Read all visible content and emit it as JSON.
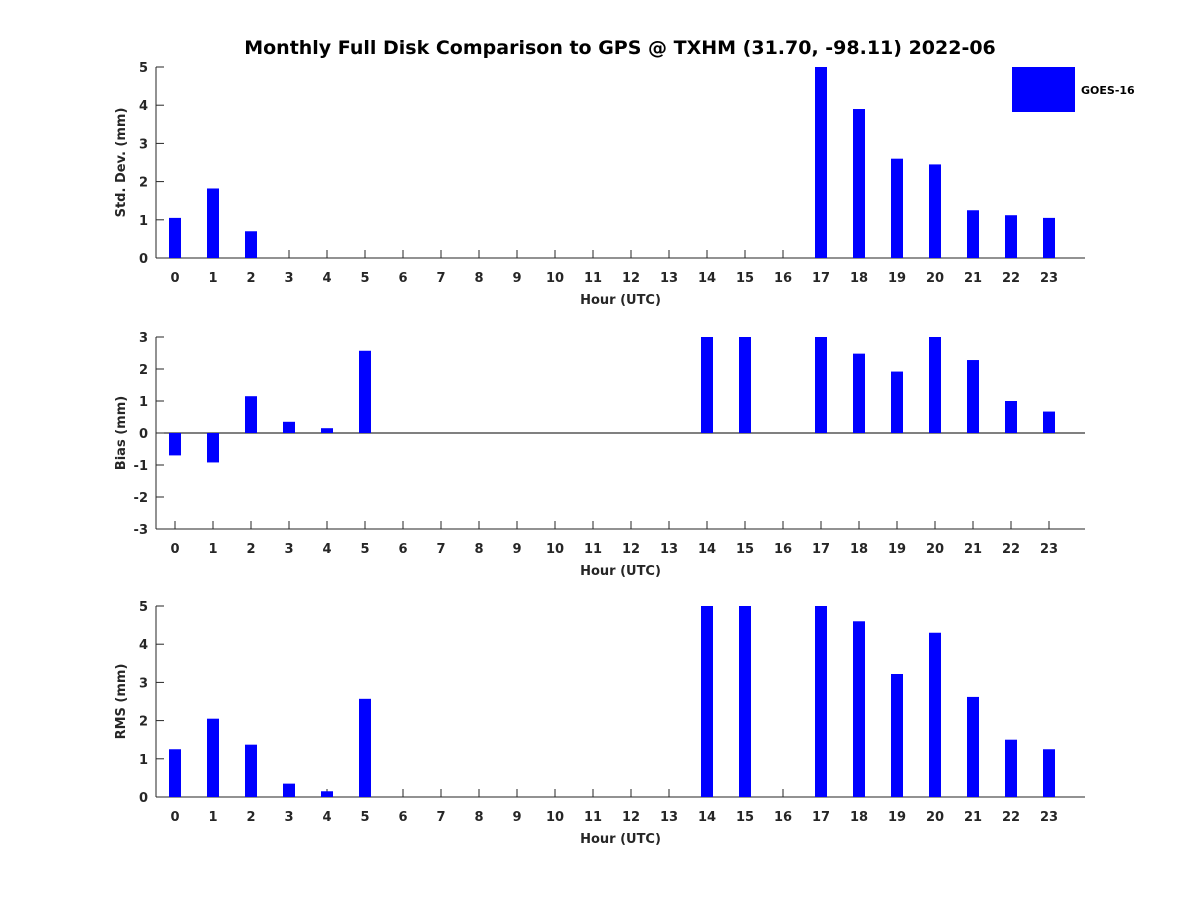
{
  "chart_data": {
    "type": "bar",
    "title": "Monthly Full Disk Comparison to GPS @ TXHM (31.70, -98.11) 2022-06",
    "legend": {
      "label": "GOES-16",
      "color": "#0000ff",
      "placement": "top-right"
    },
    "categories": [
      "0",
      "1",
      "2",
      "3",
      "4",
      "5",
      "6",
      "7",
      "8",
      "9",
      "10",
      "11",
      "12",
      "13",
      "14",
      "15",
      "16",
      "17",
      "18",
      "19",
      "20",
      "21",
      "22",
      "23"
    ],
    "panels": [
      {
        "id": "std",
        "ylabel": "Std. Dev. (mm)",
        "xlabel": "Hour (UTC)",
        "ylim": [
          0,
          5
        ],
        "yticks": [
          0,
          1,
          2,
          3,
          4,
          5
        ],
        "series": [
          {
            "name": "GOES-16",
            "values": [
              1.05,
              1.82,
              0.7,
              null,
              null,
              null,
              null,
              null,
              null,
              null,
              null,
              null,
              null,
              null,
              null,
              null,
              null,
              5.0,
              3.9,
              2.6,
              2.45,
              1.25,
              1.12,
              1.05
            ]
          }
        ]
      },
      {
        "id": "bias",
        "ylabel": "Bias (mm)",
        "xlabel": "Hour (UTC)",
        "ylim": [
          -3,
          3
        ],
        "yticks": [
          -3,
          -2,
          -1,
          0,
          1,
          2,
          3
        ],
        "zero_line": true,
        "series": [
          {
            "name": "GOES-16",
            "values": [
              -0.7,
              -0.92,
              1.15,
              0.35,
              0.15,
              2.57,
              null,
              null,
              null,
              null,
              null,
              null,
              null,
              null,
              3.0,
              3.0,
              null,
              3.0,
              2.48,
              1.92,
              3.0,
              2.28,
              1.0,
              0.67
            ]
          }
        ]
      },
      {
        "id": "rms",
        "ylabel": "RMS (mm)",
        "xlabel": "Hour (UTC)",
        "ylim": [
          0,
          5
        ],
        "yticks": [
          0,
          1,
          2,
          3,
          4,
          5
        ],
        "series": [
          {
            "name": "GOES-16",
            "values": [
              1.25,
              2.05,
              1.37,
              0.35,
              0.15,
              2.57,
              null,
              null,
              null,
              null,
              null,
              null,
              null,
              null,
              5.0,
              5.0,
              null,
              5.0,
              4.6,
              3.22,
              4.3,
              2.62,
              1.5,
              1.25
            ]
          }
        ]
      }
    ]
  }
}
